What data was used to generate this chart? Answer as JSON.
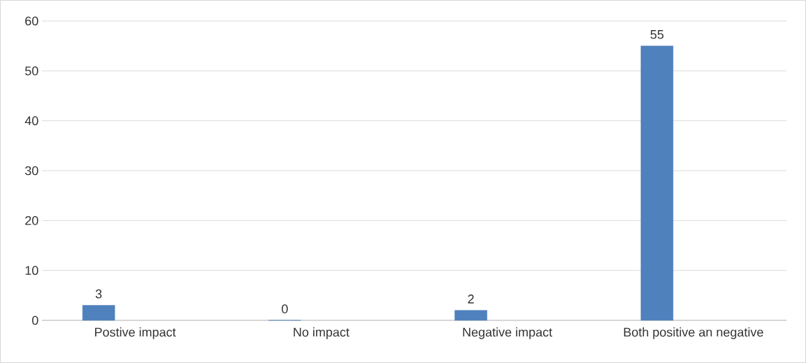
{
  "chart_data": {
    "type": "bar",
    "categories": [
      "Postive impact",
      "No impact",
      "Negative impact",
      "Both positive an negative"
    ],
    "values": [
      3,
      0,
      2,
      55
    ],
    "color": "#4f81bd",
    "ylim": [
      0,
      60
    ],
    "yticks": [
      0,
      10,
      20,
      30,
      40,
      50,
      60
    ],
    "grid": "y",
    "data_labels": true
  }
}
